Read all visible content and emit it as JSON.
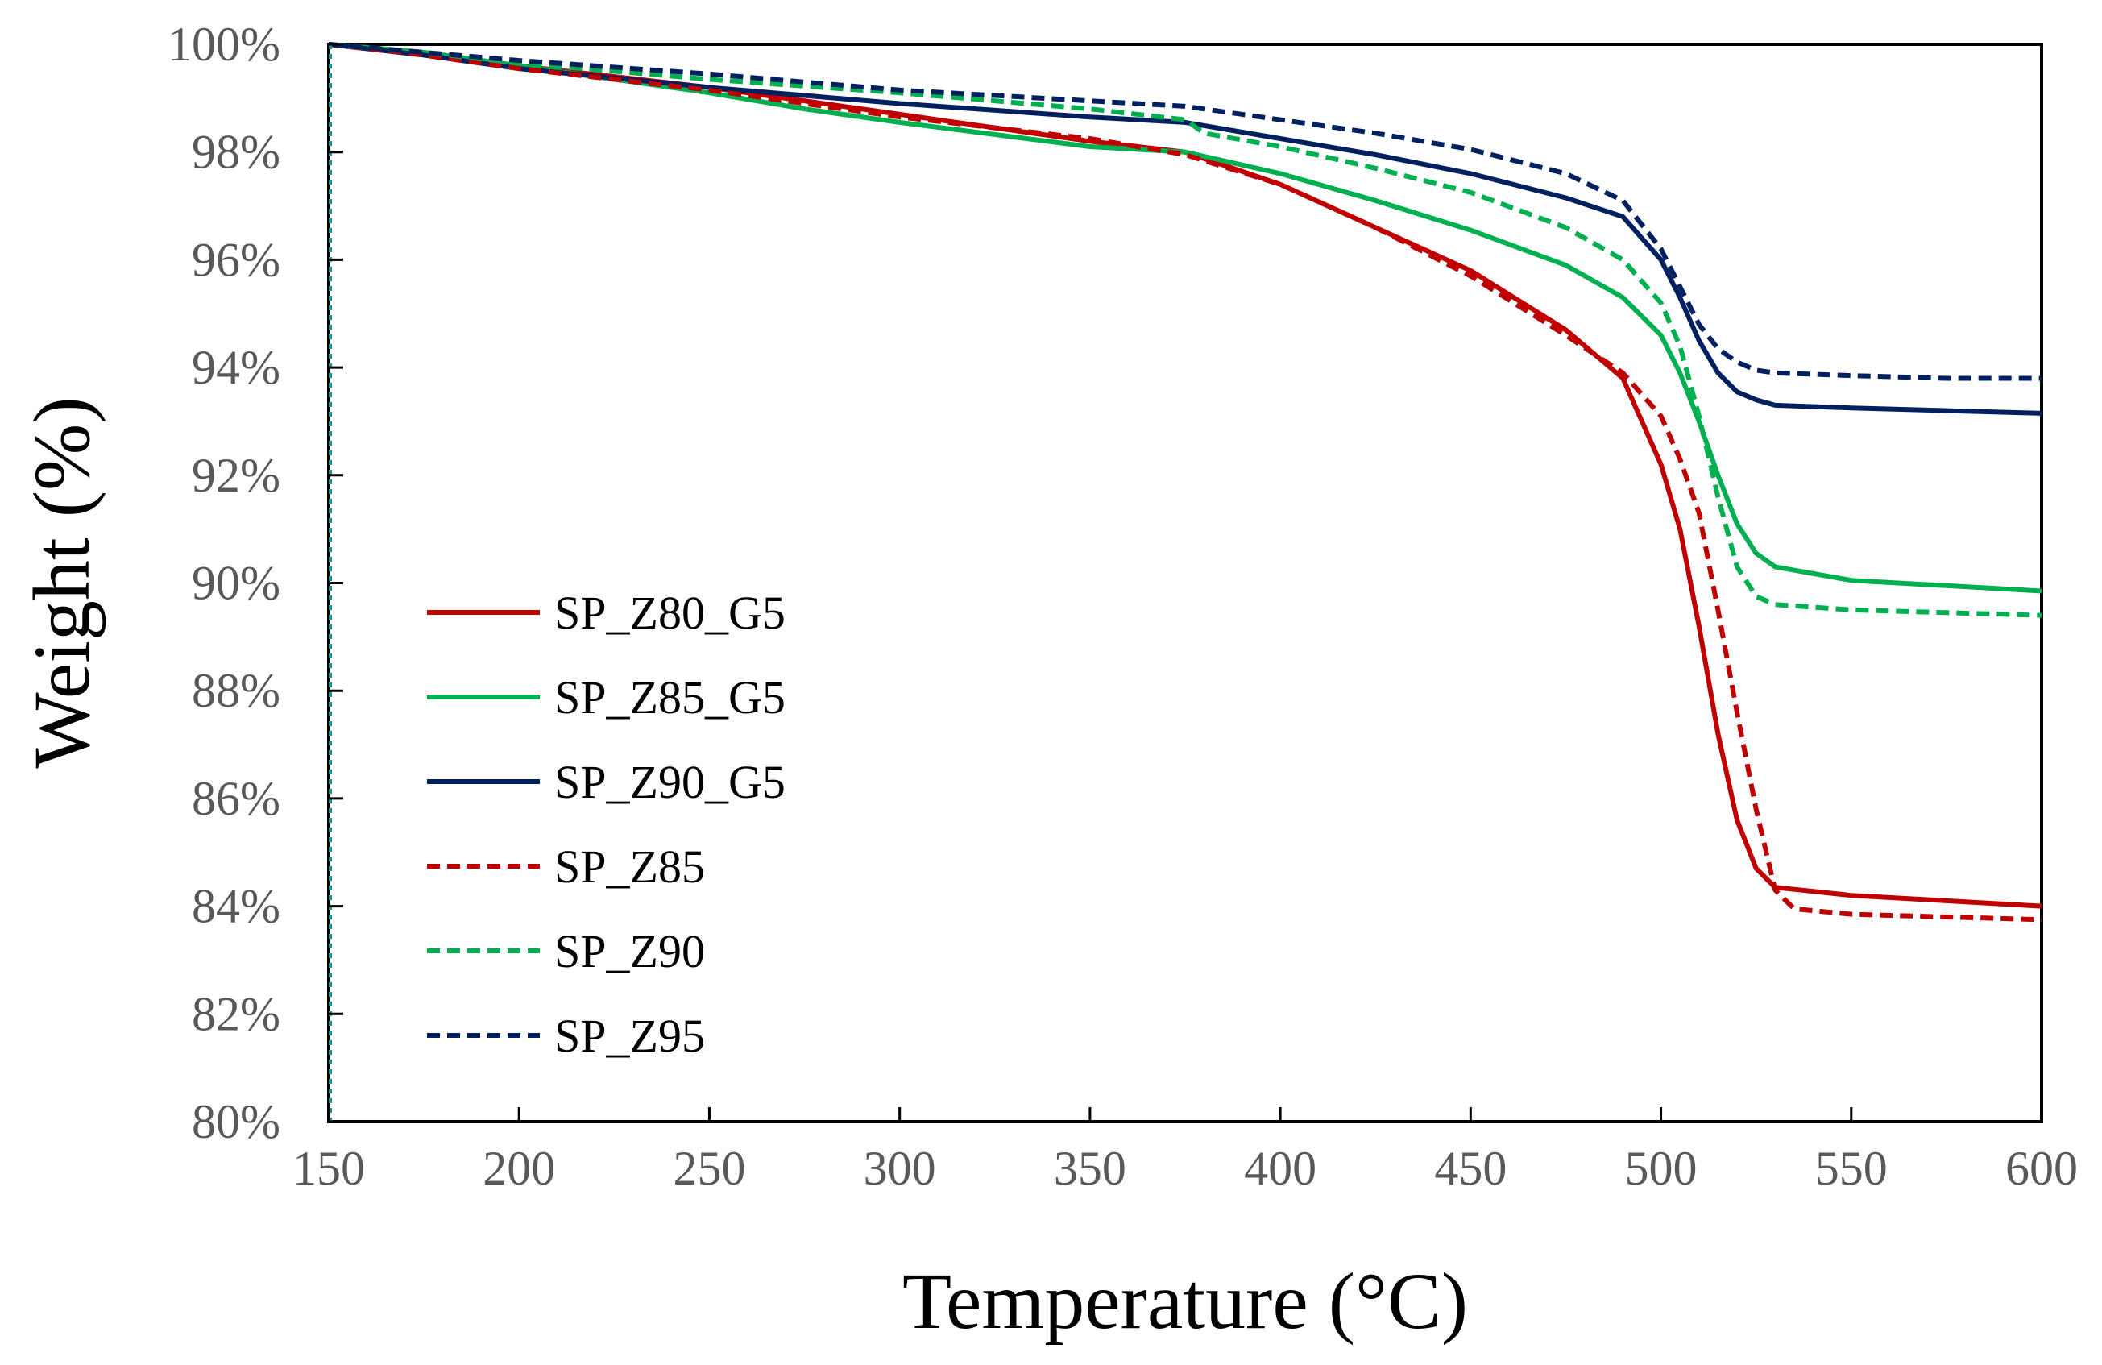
{
  "chart_data": {
    "type": "line",
    "xlabel": "Temperature (°C)",
    "ylabel": "Weight (%)",
    "xlim": [
      150,
      600
    ],
    "ylim": [
      80,
      100
    ],
    "x_ticks": [
      150,
      200,
      250,
      300,
      350,
      400,
      450,
      500,
      550,
      600
    ],
    "y_ticks": [
      80,
      82,
      84,
      86,
      88,
      90,
      92,
      94,
      96,
      98,
      100
    ],
    "y_tick_labels": [
      "80%",
      "82%",
      "84%",
      "86%",
      "88%",
      "90%",
      "92%",
      "94%",
      "96%",
      "98%",
      "100%"
    ],
    "grid": false,
    "legend_position": "center-left",
    "series": [
      {
        "name": "SP_Z80_G5",
        "color": "#c00000",
        "dash": "solid",
        "points": [
          [
            150,
            100
          ],
          [
            175,
            99.85
          ],
          [
            200,
            99.6
          ],
          [
            250,
            99.2
          ],
          [
            300,
            98.7
          ],
          [
            350,
            98.2
          ],
          [
            375,
            98.0
          ],
          [
            400,
            97.4
          ],
          [
            425,
            96.6
          ],
          [
            450,
            95.8
          ],
          [
            475,
            94.7
          ],
          [
            490,
            93.8
          ],
          [
            500,
            92.2
          ],
          [
            505,
            91.0
          ],
          [
            510,
            89.2
          ],
          [
            515,
            87.2
          ],
          [
            520,
            85.6
          ],
          [
            525,
            84.7
          ],
          [
            530,
            84.35
          ],
          [
            550,
            84.2
          ],
          [
            575,
            84.1
          ],
          [
            600,
            84.0
          ]
        ]
      },
      {
        "name": "SP_Z85_G5",
        "color": "#00b050",
        "dash": "solid",
        "points": [
          [
            150,
            100
          ],
          [
            175,
            99.85
          ],
          [
            200,
            99.6
          ],
          [
            250,
            99.1
          ],
          [
            275,
            98.8
          ],
          [
            300,
            98.55
          ],
          [
            350,
            98.1
          ],
          [
            375,
            98.0
          ],
          [
            400,
            97.6
          ],
          [
            425,
            97.1
          ],
          [
            450,
            96.55
          ],
          [
            475,
            95.9
          ],
          [
            490,
            95.3
          ],
          [
            500,
            94.6
          ],
          [
            505,
            93.9
          ],
          [
            510,
            93.0
          ],
          [
            515,
            92.0
          ],
          [
            520,
            91.1
          ],
          [
            525,
            90.55
          ],
          [
            530,
            90.3
          ],
          [
            550,
            90.05
          ],
          [
            575,
            89.95
          ],
          [
            600,
            89.85
          ]
        ]
      },
      {
        "name": "SP_Z90_G5",
        "color": "#002060",
        "dash": "solid",
        "points": [
          [
            150,
            100
          ],
          [
            175,
            99.8
          ],
          [
            200,
            99.55
          ],
          [
            250,
            99.2
          ],
          [
            300,
            98.9
          ],
          [
            350,
            98.65
          ],
          [
            375,
            98.55
          ],
          [
            400,
            98.25
          ],
          [
            425,
            97.95
          ],
          [
            450,
            97.6
          ],
          [
            475,
            97.15
          ],
          [
            490,
            96.8
          ],
          [
            500,
            96.0
          ],
          [
            505,
            95.3
          ],
          [
            510,
            94.5
          ],
          [
            515,
            93.9
          ],
          [
            520,
            93.55
          ],
          [
            525,
            93.4
          ],
          [
            530,
            93.3
          ],
          [
            550,
            93.25
          ],
          [
            575,
            93.2
          ],
          [
            600,
            93.15
          ]
        ]
      },
      {
        "name": "SP_Z85",
        "color": "#c00000",
        "dash": "dashed",
        "points": [
          [
            150,
            100
          ],
          [
            175,
            99.8
          ],
          [
            200,
            99.55
          ],
          [
            250,
            99.15
          ],
          [
            300,
            98.65
          ],
          [
            350,
            98.25
          ],
          [
            375,
            97.95
          ],
          [
            400,
            97.4
          ],
          [
            425,
            96.6
          ],
          [
            450,
            95.7
          ],
          [
            475,
            94.6
          ],
          [
            490,
            93.9
          ],
          [
            500,
            93.1
          ],
          [
            505,
            92.3
          ],
          [
            510,
            91.3
          ],
          [
            515,
            89.5
          ],
          [
            520,
            87.6
          ],
          [
            525,
            85.8
          ],
          [
            530,
            84.3
          ],
          [
            535,
            83.95
          ],
          [
            550,
            83.85
          ],
          [
            575,
            83.8
          ],
          [
            600,
            83.75
          ]
        ]
      },
      {
        "name": "SP_Z90",
        "color": "#00b050",
        "dash": "dashed",
        "points": [
          [
            150,
            100
          ],
          [
            175,
            99.85
          ],
          [
            200,
            99.65
          ],
          [
            250,
            99.35
          ],
          [
            300,
            99.1
          ],
          [
            350,
            98.8
          ],
          [
            375,
            98.6
          ],
          [
            380,
            98.35
          ],
          [
            400,
            98.1
          ],
          [
            425,
            97.7
          ],
          [
            450,
            97.25
          ],
          [
            475,
            96.6
          ],
          [
            490,
            96.0
          ],
          [
            500,
            95.2
          ],
          [
            505,
            94.4
          ],
          [
            510,
            93.1
          ],
          [
            515,
            91.6
          ],
          [
            520,
            90.3
          ],
          [
            525,
            89.75
          ],
          [
            530,
            89.6
          ],
          [
            550,
            89.5
          ],
          [
            575,
            89.45
          ],
          [
            600,
            89.4
          ]
        ]
      },
      {
        "name": "SP_Z95",
        "color": "#002060",
        "dash": "dashed",
        "points": [
          [
            150,
            100
          ],
          [
            175,
            99.85
          ],
          [
            200,
            99.7
          ],
          [
            250,
            99.45
          ],
          [
            300,
            99.15
          ],
          [
            350,
            98.95
          ],
          [
            375,
            98.85
          ],
          [
            400,
            98.6
          ],
          [
            425,
            98.35
          ],
          [
            450,
            98.05
          ],
          [
            475,
            97.6
          ],
          [
            490,
            97.1
          ],
          [
            500,
            96.2
          ],
          [
            505,
            95.5
          ],
          [
            510,
            94.8
          ],
          [
            515,
            94.35
          ],
          [
            520,
            94.1
          ],
          [
            525,
            93.95
          ],
          [
            530,
            93.9
          ],
          [
            550,
            93.85
          ],
          [
            575,
            93.8
          ],
          [
            600,
            93.8
          ]
        ]
      }
    ]
  }
}
